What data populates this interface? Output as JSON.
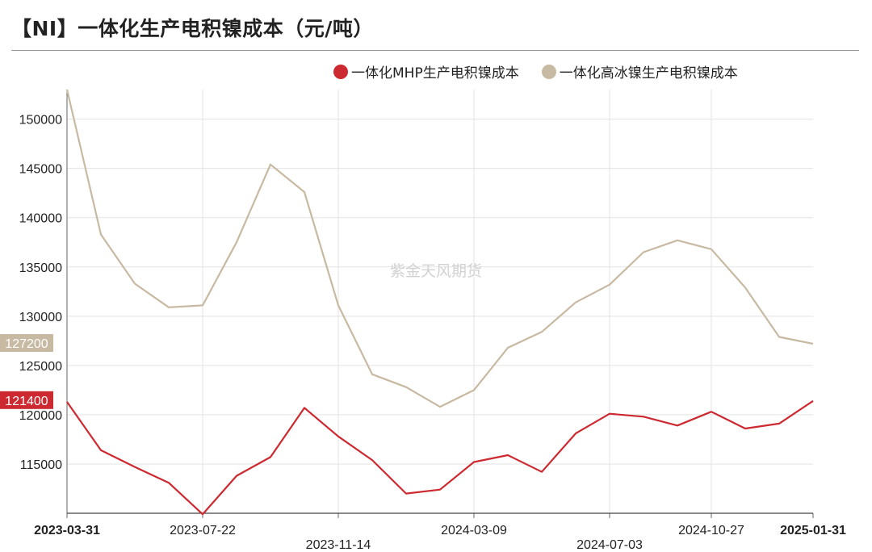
{
  "title": "【NI】一体化生产电积镍成本（元/吨）",
  "watermark": "紫金天风期货",
  "chart_data": {
    "type": "line",
    "x": [
      "2023-03-31",
      "2023-04-30",
      "2023-05-31",
      "2023-06-30",
      "2023-07-22",
      "2023-08-31",
      "2023-09-30",
      "2023-10-31",
      "2023-11-14",
      "2023-12-31",
      "2024-01-31",
      "2024-02-29",
      "2024-03-09",
      "2024-04-30",
      "2024-05-31",
      "2024-06-30",
      "2024-07-03",
      "2024-08-31",
      "2024-09-30",
      "2024-10-27",
      "2024-11-30",
      "2024-12-31",
      "2025-01-31"
    ],
    "xticks": [
      {
        "label": "2023-03-31",
        "index": 0,
        "bold": true
      },
      {
        "label": "2023-07-22",
        "index": 4,
        "bold": false
      },
      {
        "label": "2023-11-14",
        "index": 8,
        "bold": false
      },
      {
        "label": "2024-03-09",
        "index": 12,
        "bold": false
      },
      {
        "label": "2024-07-03",
        "index": 16,
        "bold": false
      },
      {
        "label": "2024-10-27",
        "index": 19,
        "bold": false
      },
      {
        "label": "2025-01-31",
        "index": 22,
        "bold": true
      }
    ],
    "series": [
      {
        "name": "一体化MHP生产电积镍成本",
        "color": "#cc2a30",
        "values": [
          121300,
          116400,
          114700,
          113100,
          109900,
          113800,
          115700,
          120700,
          117800,
          115400,
          112000,
          112400,
          115200,
          115900,
          114200,
          118100,
          120100,
          119800,
          118900,
          120300,
          118600,
          119100,
          121400
        ],
        "last_label": "121400"
      },
      {
        "name": "一体化高冰镍生产电积镍成本",
        "color": "#c8b9a2",
        "values": [
          153000,
          138300,
          133300,
          130900,
          131100,
          137500,
          145400,
          142600,
          131100,
          124100,
          122800,
          120800,
          122500,
          126800,
          128400,
          131400,
          133200,
          136500,
          137700,
          136800,
          132900,
          127900,
          127200
        ],
        "last_label": "127200"
      }
    ],
    "yticks": [
      115000,
      120000,
      125000,
      130000,
      135000,
      140000,
      145000,
      150000
    ],
    "ylim": [
      110000,
      153000
    ],
    "grid": true,
    "legend": "top"
  }
}
